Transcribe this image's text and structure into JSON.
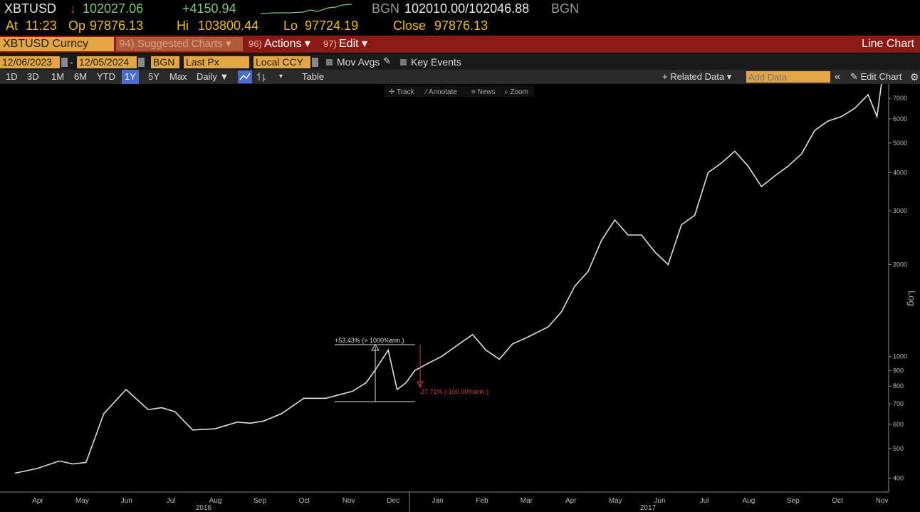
{
  "quote": {
    "ticker": "XBTUSD",
    "arrow": "↓",
    "last": "102027.06",
    "change": "+4150.94",
    "source1": "BGN",
    "bidask": "102010.00/102046.88",
    "source2": "BGN",
    "at_label": "At",
    "time": "11:23",
    "op_label": "Op",
    "open": "97876.13",
    "hi_label": "Hi",
    "hi": "103800.44",
    "lo_label": "Lo",
    "lo": "97724.19",
    "close_label": "Close",
    "close": "97876.13"
  },
  "menubar": {
    "security": "XBTUSD Curncy",
    "suggested": "94) Suggested Charts ▾",
    "actions_num": "96)",
    "actions": "Actions ▾",
    "edit_num": "97)",
    "edit": "Edit ▾",
    "chart_type": "Line Chart"
  },
  "params": {
    "start_date": "12/06/2023",
    "dash": "-",
    "end_date": "12/05/2024",
    "source": "BGN",
    "field": "Last Px",
    "currency": "Local CCY",
    "mov_avgs": "Mov Avgs",
    "key_events": "Key Events"
  },
  "range": {
    "buttons": [
      "1D",
      "3D",
      "1M",
      "6M",
      "YTD",
      "1Y",
      "5Y",
      "Max"
    ],
    "selected": "1Y",
    "period": "Daily ▼",
    "table": "Table",
    "related": "+ Related Data ▾",
    "add_data_placeholder": "Add Data",
    "collapse": "«",
    "edit_chart": "✎ Edit Chart",
    "settings_icon": "gear-icon"
  },
  "toolbar": {
    "track": "✛ Track",
    "annotate": "⁄ Annotate",
    "news": "≡ News",
    "zoom": "⌕ Zoom"
  },
  "annotations": {
    "up": "+53.43% (> 1000%ann.)",
    "down": "-27.71% (-100.00%ann.)"
  },
  "chart_data": {
    "type": "line",
    "yscale": "log",
    "ylabel": "Log",
    "yticks": [
      400,
      500,
      600,
      700,
      800,
      900,
      1000,
      2000,
      3000,
      4000,
      5000,
      6000,
      7000
    ],
    "ylim": [
      360,
      7800
    ],
    "months": [
      "Apr",
      "May",
      "Jun",
      "Jul",
      "Aug",
      "Sep",
      "Oct",
      "Nov",
      "Dec",
      "Jan",
      "Feb",
      "Mar",
      "Apr",
      "May",
      "Jun",
      "Jul",
      "Aug",
      "Sep",
      "Oct",
      "Nov"
    ],
    "years": [
      "2016",
      "2017"
    ],
    "x": [
      0,
      0.5,
      1,
      1.3,
      1.6,
      2,
      2.5,
      3,
      3.3,
      3.6,
      4,
      4.5,
      5,
      5.3,
      5.6,
      6,
      6.5,
      7,
      7.3,
      7.6,
      7.9,
      8.1,
      8.4,
      8.6,
      8.8,
      9.0,
      9.3,
      9.6,
      10,
      10.3,
      10.6,
      10.9,
      11.2,
      11.5,
      12,
      12.3,
      12.6,
      12.9,
      13.2,
      13.5,
      13.8,
      14.1,
      14.4,
      14.7,
      15,
      15.3,
      15.6,
      15.9,
      16.2,
      16.5,
      16.8,
      17.1,
      17.4,
      17.7,
      18,
      18.3,
      18.6,
      18.9,
      19.2,
      19.4,
      19.5
    ],
    "y": [
      415,
      430,
      455,
      445,
      450,
      650,
      780,
      670,
      680,
      660,
      575,
      580,
      610,
      605,
      615,
      650,
      730,
      730,
      750,
      770,
      820,
      900,
      1050,
      780,
      820,
      900,
      950,
      1000,
      1100,
      1180,
      1050,
      980,
      1100,
      1150,
      1250,
      1400,
      1700,
      1900,
      2400,
      2800,
      2500,
      2500,
      2200,
      2000,
      2700,
      2900,
      4000,
      4300,
      4700,
      4200,
      3600,
      3900,
      4200,
      4600,
      5500,
      5900,
      6100,
      6500,
      7200,
      6100,
      7800
    ]
  }
}
